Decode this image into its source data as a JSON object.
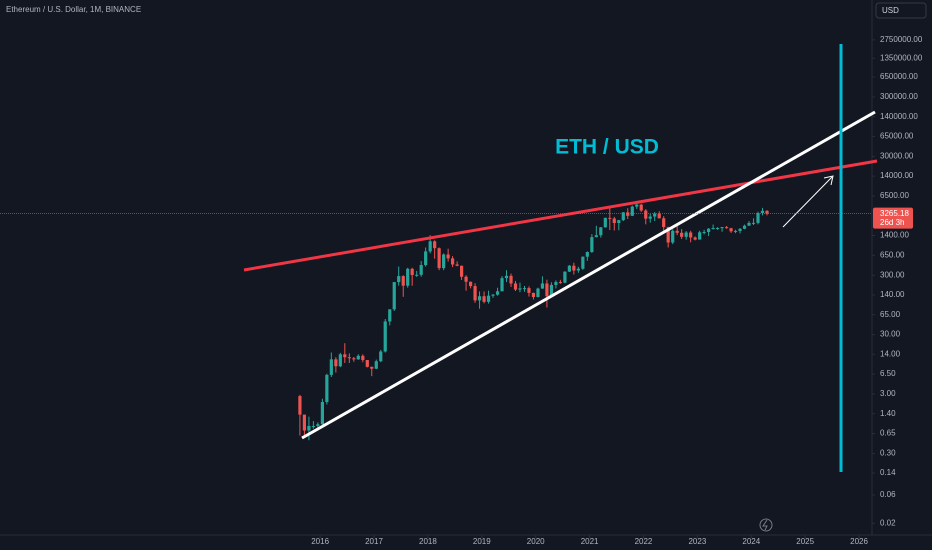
{
  "chart_data": {
    "type": "candlestick",
    "title": "Ethereum / U.S. Dollar, 1M, BINANCE",
    "currency": "USD",
    "annotation": "ETH / USD",
    "countdown": "26d 3h",
    "log_scale": true,
    "up_color": "#26a69a",
    "down_color": "#ef5350",
    "xlim": [
      2010.06,
      2026.24
    ],
    "xticks": [
      2016,
      2017,
      2018,
      2019,
      2020,
      2021,
      2022,
      2023,
      2024,
      2025,
      2026
    ],
    "ylim": [
      0.0127,
      12900000
    ],
    "yticks": [
      {
        "value": 2750000,
        "label": "2750000.00"
      },
      {
        "value": 1350000,
        "label": "1350000.00"
      },
      {
        "value": 650000,
        "label": "650000.00"
      },
      {
        "value": 300000,
        "label": "300000.00"
      },
      {
        "value": 140000,
        "label": "140000.00"
      },
      {
        "value": 65000,
        "label": "65000.00"
      },
      {
        "value": 30000,
        "label": "30000.00"
      },
      {
        "value": 14000,
        "label": "14000.00"
      },
      {
        "value": 6500,
        "label": "6500.00"
      },
      {
        "value": 1400,
        "label": "1400.00"
      },
      {
        "value": 650,
        "label": "650.00"
      },
      {
        "value": 300,
        "label": "300.00"
      },
      {
        "value": 140,
        "label": "140.00"
      },
      {
        "value": 65,
        "label": "65.00"
      },
      {
        "value": 30,
        "label": "30.00"
      },
      {
        "value": 14,
        "label": "14.00"
      },
      {
        "value": 6.5,
        "label": "6.50"
      },
      {
        "value": 3,
        "label": "3.00"
      },
      {
        "value": 1.4,
        "label": "1.40"
      },
      {
        "value": 0.65,
        "label": "0.65"
      },
      {
        "value": 0.3,
        "label": "0.30"
      },
      {
        "value": 0.14,
        "label": "0.14"
      },
      {
        "value": 0.06,
        "label": "0.06"
      },
      {
        "value": 0.02,
        "label": "0.02"
      }
    ],
    "x": [
      2015.625,
      2015.708,
      2015.792,
      2015.875,
      2015.958,
      2016.042,
      2016.125,
      2016.208,
      2016.292,
      2016.375,
      2016.458,
      2016.542,
      2016.625,
      2016.708,
      2016.792,
      2016.875,
      2016.958,
      2017.042,
      2017.125,
      2017.208,
      2017.292,
      2017.375,
      2017.458,
      2017.542,
      2017.625,
      2017.708,
      2017.792,
      2017.875,
      2017.958,
      2018.042,
      2018.125,
      2018.208,
      2018.292,
      2018.375,
      2018.458,
      2018.542,
      2018.625,
      2018.708,
      2018.792,
      2018.875,
      2018.958,
      2019.042,
      2019.125,
      2019.208,
      2019.292,
      2019.375,
      2019.458,
      2019.542,
      2019.625,
      2019.708,
      2019.792,
      2019.875,
      2019.958,
      2020.042,
      2020.125,
      2020.208,
      2020.292,
      2020.375,
      2020.458,
      2020.542,
      2020.625,
      2020.708,
      2020.792,
      2020.875,
      2020.958,
      2021.042,
      2021.125,
      2021.208,
      2021.292,
      2021.375,
      2021.458,
      2021.542,
      2021.625,
      2021.708,
      2021.792,
      2021.875,
      2021.958,
      2022.042,
      2022.125,
      2022.208,
      2022.292,
      2022.375,
      2022.458,
      2022.542,
      2022.625,
      2022.708,
      2022.792,
      2022.875,
      2022.958,
      2023.042,
      2023.125,
      2023.208,
      2023.292,
      2023.375,
      2023.458,
      2023.542,
      2023.625,
      2023.708,
      2023.792,
      2023.875,
      2023.958,
      2024.042,
      2024.125,
      2024.208,
      2024.292
    ],
    "open": [
      2.77,
      1.35,
      0.73,
      0.87,
      0.87,
      0.93,
      2.2,
      6.3,
      11.5,
      8.8,
      14,
      12.5,
      12,
      11.5,
      13.2,
      11.2,
      8.6,
      8,
      10.7,
      15.6,
      50,
      80,
      230,
      290,
      200,
      385,
      303,
      305,
      445,
      755,
      1118,
      855,
      395,
      670,
      577,
      455,
      433,
      283,
      233,
      197,
      113,
      133,
      107,
      136,
      141,
      161,
      268,
      293,
      218,
      172,
      180,
      182,
      151,
      129,
      179,
      218,
      133,
      206,
      230,
      225,
      345,
      434,
      360,
      386,
      615,
      737,
      1314,
      1416,
      1918,
      2773,
      2707,
      2274,
      2536,
      3433,
      3001,
      4288,
      4631,
      3682,
      2688,
      2919,
      3283,
      2727,
      1941,
      1067,
      1679,
      1554,
      1328,
      1572,
      1296,
      1196,
      1585,
      1605,
      1822,
      1870,
      1874,
      1934,
      1857,
      1646,
      1671,
      1815,
      2047,
      2282,
      2283,
      3341,
      3647
    ],
    "high": [
      2.9,
      1.35,
      1.25,
      1.05,
      1,
      2.5,
      6.6,
      15,
      12.5,
      14.8,
      21.5,
      14.5,
      12.6,
      14,
      14,
      11.2,
      8.7,
      11.4,
      16.6,
      55,
      80,
      231,
      420,
      300,
      400,
      400,
      355,
      520,
      880,
      1420,
      1160,
      880,
      700,
      840,
      630,
      515,
      435,
      300,
      235,
      220,
      160,
      160,
      165,
      145,
      185,
      290,
      365,
      320,
      240,
      225,
      198,
      195,
      153,
      185,
      288,
      253,
      228,
      246,
      251,
      350,
      445,
      488,
      416,
      622,
      755,
      1475,
      2040,
      1945,
      2800,
      4380,
      2890,
      2560,
      3470,
      4030,
      4460,
      4870,
      4780,
      3900,
      3285,
      3480,
      3580,
      2965,
      1970,
      1785,
      2030,
      1790,
      1665,
      1680,
      1350,
      1680,
      1745,
      1860,
      2140,
      1930,
      1950,
      2030,
      1880,
      1750,
      1865,
      2135,
      2445,
      2720,
      3520,
      4090,
      3730
    ],
    "low": [
      0.6,
      0.58,
      0.5,
      0.78,
      0.8,
      0.92,
      2,
      5.8,
      6.9,
      8.5,
      10,
      10,
      10.5,
      11.3,
      10.3,
      8.4,
      6,
      7.9,
      10.3,
      15,
      43,
      75,
      200,
      130,
      185,
      200,
      282,
      283,
      420,
      700,
      570,
      365,
      365,
      510,
      410,
      425,
      250,
      165,
      180,
      103,
      82,
      101,
      100,
      125,
      136,
      160,
      230,
      190,
      163,
      155,
      158,
      131,
      117,
      127,
      177,
      86,
      126,
      180,
      215,
      220,
      340,
      308,
      330,
      370,
      525,
      715,
      1300,
      1290,
      1900,
      1730,
      1700,
      1720,
      2450,
      2650,
      2970,
      3920,
      3500,
      2160,
      2300,
      2450,
      2700,
      1700,
      880,
      1000,
      1420,
      1220,
      1190,
      1075,
      1160,
      1190,
      1460,
      1370,
      1760,
      1740,
      1620,
      1820,
      1550,
      1530,
      1520,
      1780,
      2030,
      2100,
      2160,
      3050,
      3050
    ],
    "close": [
      1.35,
      0.73,
      0.87,
      0.87,
      0.93,
      2.2,
      6.3,
      11.5,
      8.8,
      14,
      12.5,
      12,
      11.5,
      13.2,
      11.2,
      8.6,
      8,
      10.7,
      15.6,
      50,
      80,
      230,
      290,
      200,
      385,
      303,
      305,
      445,
      755,
      1118,
      855,
      395,
      670,
      577,
      455,
      433,
      283,
      233,
      197,
      113,
      133,
      107,
      136,
      141,
      161,
      268,
      293,
      218,
      172,
      180,
      182,
      151,
      129,
      179,
      218,
      133,
      206,
      230,
      225,
      345,
      434,
      360,
      386,
      615,
      737,
      1314,
      1416,
      1918,
      2773,
      2707,
      2274,
      2536,
      3433,
      3001,
      4288,
      4631,
      3682,
      2688,
      2919,
      3283,
      2727,
      1941,
      1067,
      1679,
      1554,
      1328,
      1572,
      1296,
      1196,
      1585,
      1605,
      1822,
      1870,
      1874,
      1934,
      1857,
      1646,
      1671,
      1815,
      2047,
      2282,
      2283,
      3341,
      3647,
      3265.18
    ]
  }
}
